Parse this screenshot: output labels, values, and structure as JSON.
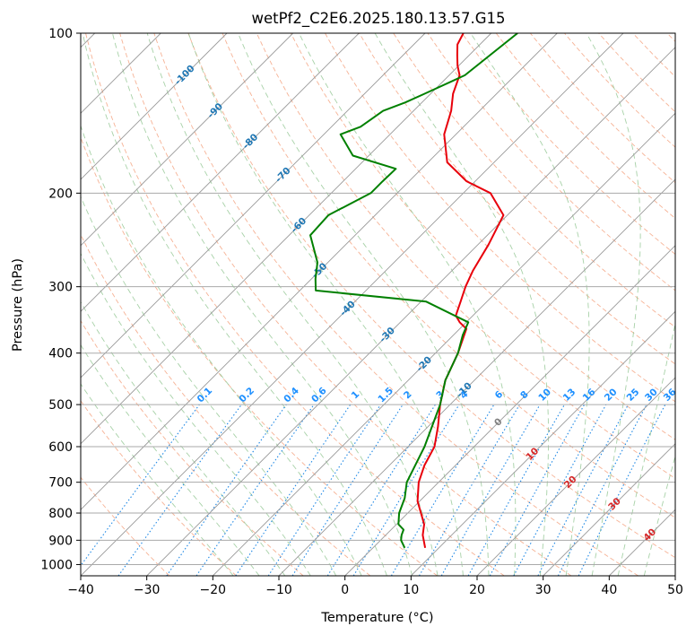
{
  "chart_data": {
    "type": "line",
    "title": "wetPf2_C2E6.2025.180.13.57.G15",
    "xlabel": "Temperature (°C)",
    "ylabel": "Pressure (hPa)",
    "xlim": [
      -40,
      50
    ],
    "ylim": [
      1050,
      100
    ],
    "y_scale": "log",
    "x_ticks": [
      -40,
      -30,
      -20,
      -10,
      0,
      10,
      20,
      30,
      40,
      50
    ],
    "x_tick_labels": [
      "−40",
      "−30",
      "−20",
      "−10",
      "0",
      "10",
      "20",
      "30",
      "40",
      "50"
    ],
    "y_ticks": [
      1000,
      900,
      800,
      700,
      600,
      500,
      400,
      300,
      200,
      100
    ],
    "y_tick_labels": [
      "1000",
      "900",
      "800",
      "700",
      "600",
      "500",
      "400",
      "300",
      "200",
      "100"
    ],
    "grid": true,
    "colors": {
      "temperature": "#e8000b",
      "dewpoint": "#008000",
      "isotherm_label": "#1f77b4",
      "mixing_ratio_label": "#1e90ff",
      "moist_adiabat_label": "#d62728",
      "zero_isotherm_label": "#7f7f7f"
    },
    "series": [
      {
        "role": "temperature",
        "x": [
          7.9,
          5.6,
          4.2,
          2.0,
          -0.3,
          -3.0,
          -4.7,
          -6.0,
          -8.5,
          -11.5,
          -14.4,
          -16.6,
          -19.0,
          -21.0,
          -22.6,
          -24.0,
          -25.5,
          -26.8,
          -28.4,
          -30.6,
          -35.9,
          -41.3,
          -47.1,
          -51.8,
          -54.3,
          -56.6,
          -58.4,
          -60.2,
          -61.8,
          -63.4,
          -64.2
        ],
        "y": [
          930,
          880,
          840,
          800,
          760,
          700,
          650,
          600,
          550,
          500,
          450,
          400,
          360,
          350,
          340,
          320,
          300,
          280,
          250,
          220,
          200,
          190,
          175,
          155,
          140,
          130,
          120,
          115,
          110,
          105,
          100
        ]
      },
      {
        "role": "dewpoint",
        "x": [
          4.8,
          3.1,
          2.4,
          1.9,
          0.3,
          -1.3,
          -2.7,
          -4.8,
          -7.5,
          -11.5,
          -14.4,
          -16.6,
          -18.6,
          -19.7,
          -29.2,
          -47.6,
          -49.4,
          -51.6,
          -56.8,
          -57.1,
          -54.0,
          -54.0,
          -53.9,
          -62.4,
          -67.5,
          -65.6,
          -64.6,
          -62.5,
          -60.9,
          -57.6,
          -56.0
        ],
        "y": [
          930,
          900,
          880,
          860,
          840,
          800,
          750,
          700,
          600,
          500,
          450,
          400,
          370,
          350,
          320,
          305,
          290,
          270,
          240,
          220,
          200,
          190,
          180,
          170,
          155,
          150,
          140,
          135,
          130,
          120,
          100
        ]
      }
    ],
    "isotherm_labels": [
      "-100",
      "-90",
      "-80",
      "-70",
      "-60",
      "-50",
      "-40",
      "-30",
      "-20",
      "-10"
    ],
    "mixing_ratio_labels": [
      "0.1",
      "0.2",
      "0.4",
      "0.6",
      "1",
      "1.5",
      "2",
      "3",
      "4",
      "6",
      "8",
      "10",
      "13",
      "16",
      "20",
      "25",
      "30",
      "36"
    ],
    "moist_adiabat_labels": [
      "10",
      "20",
      "30",
      "40"
    ],
    "zero_isotherm_label": "0"
  }
}
